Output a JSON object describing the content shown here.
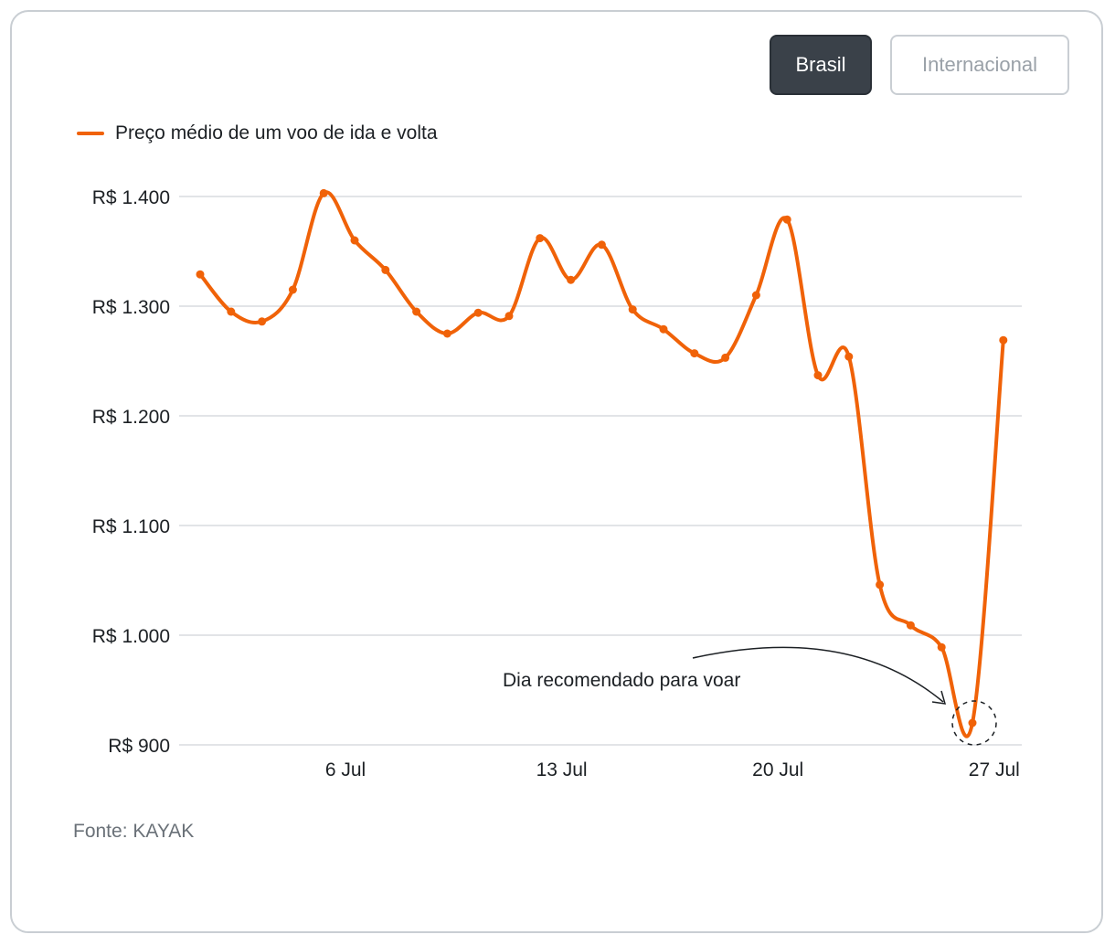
{
  "toggle": {
    "brasil_label": "Brasil",
    "internacional_label": "Internacional",
    "selected": "Brasil"
  },
  "footer": {
    "source": "Fonte: KAYAK"
  },
  "colors": {
    "line": "#f06208",
    "grid": "#d9dcdf",
    "active_button": "#3a4149"
  },
  "chart_data": {
    "type": "line",
    "title": "",
    "xlabel": "",
    "ylabel": "",
    "x": [
      "1 Jul",
      "2 Jul",
      "3 Jul",
      "4 Jul",
      "5 Jul",
      "6 Jul",
      "7 Jul",
      "8 Jul",
      "9 Jul",
      "10 Jul",
      "11 Jul",
      "12 Jul",
      "13 Jul",
      "14 Jul",
      "15 Jul",
      "16 Jul",
      "17 Jul",
      "18 Jul",
      "19 Jul",
      "20 Jul",
      "21 Jul",
      "22 Jul",
      "23 Jul",
      "24 Jul",
      "25 Jul",
      "26 Jul",
      "27 Jul"
    ],
    "series": [
      {
        "name": "Preço médio de um voo de ida e volta",
        "values": [
          1329,
          1295,
          1286,
          1315,
          1403,
          1360,
          1333,
          1295,
          1275,
          1294,
          1291,
          1362,
          1324,
          1356,
          1297,
          1279,
          1257,
          1253,
          1310,
          1379,
          1237,
          1254,
          1046,
          1009,
          989,
          920,
          1269
        ]
      }
    ],
    "x_tick_labels": [
      {
        "index": 5,
        "label": "6 Jul"
      },
      {
        "index": 12,
        "label": "13 Jul"
      },
      {
        "index": 19,
        "label": "20 Jul"
      },
      {
        "index": 26,
        "label": "27 Jul"
      }
    ],
    "y_ticks": [
      {
        "value": 1400,
        "label": "R$ 1.400"
      },
      {
        "value": 1300,
        "label": "R$ 1.300"
      },
      {
        "value": 1200,
        "label": "R$ 1.200"
      },
      {
        "value": 1100,
        "label": "R$ 1.100"
      },
      {
        "value": 1000,
        "label": "R$ 1.000"
      },
      {
        "value": 900,
        "label": "R$ 900"
      }
    ],
    "ylim": [
      900,
      1400
    ],
    "grid": true,
    "legend_position": "top-left",
    "annotation": {
      "text": "Dia recomendado para voar",
      "target_index": 25
    }
  }
}
